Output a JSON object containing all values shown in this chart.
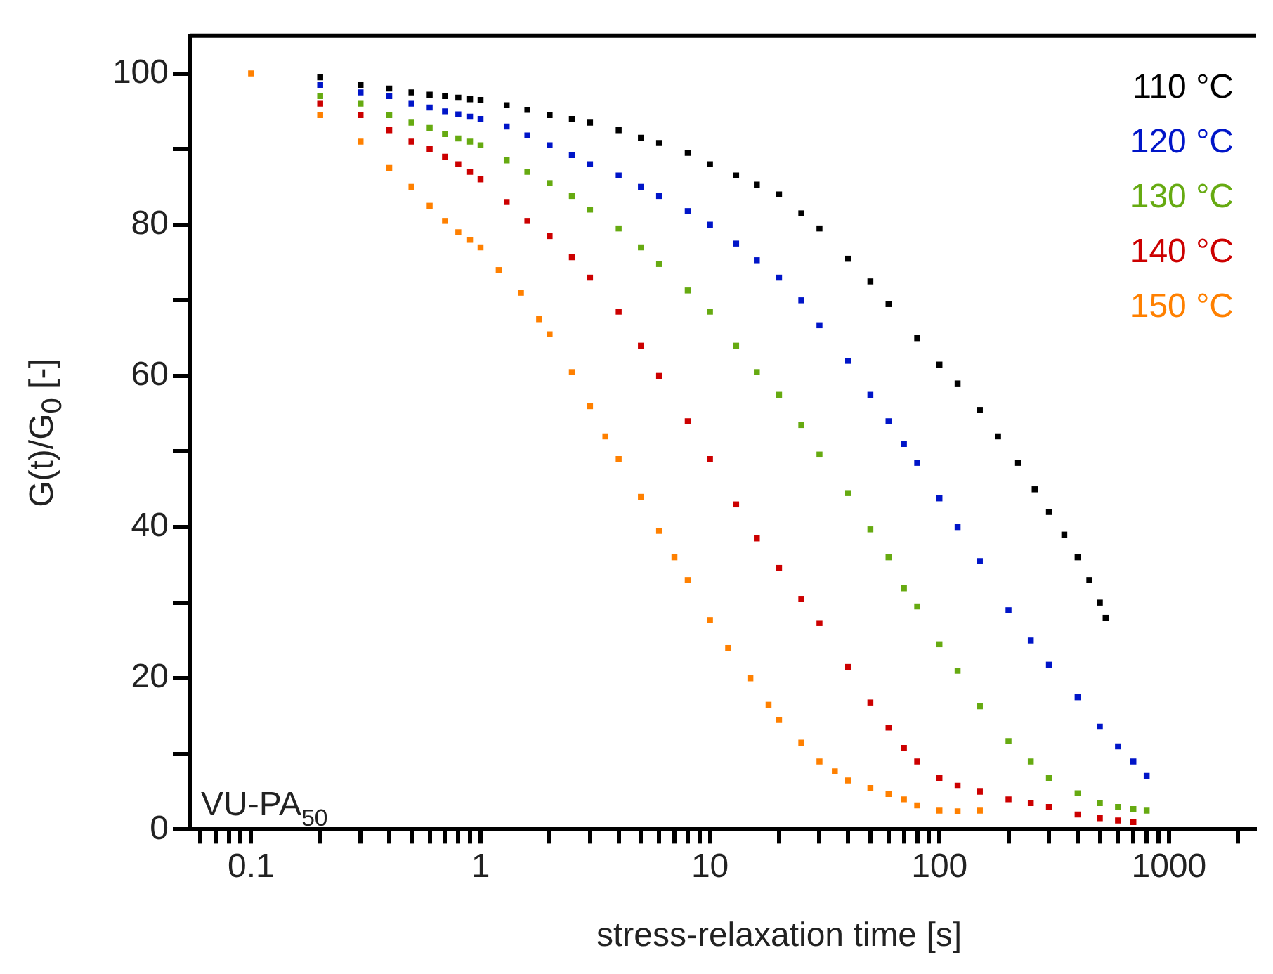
{
  "chart_data": {
    "type": "scatter",
    "xlabel": "stress-relaxation time [s]",
    "ylabel": "G(t)/G$_{0}$ [-]",
    "log": "x",
    "xlim": [
      0.054,
      2400
    ],
    "ylim": [
      0,
      105
    ],
    "xticks": [
      {
        "value": 0.06,
        "label": null
      },
      {
        "value": 0.07,
        "label": null
      },
      {
        "value": 0.08,
        "label": null
      },
      {
        "value": 0.09,
        "label": null
      },
      0.1,
      {
        "value": 0.2,
        "label": null
      },
      {
        "value": 0.3,
        "label": null
      },
      {
        "value": 0.4,
        "label": null
      },
      {
        "value": 0.5,
        "label": null
      },
      {
        "value": 0.6,
        "label": null
      },
      {
        "value": 0.7,
        "label": null
      },
      {
        "value": 0.8,
        "label": null
      },
      {
        "value": 0.9,
        "label": null
      },
      1,
      {
        "value": 2,
        "label": null
      },
      {
        "value": 3,
        "label": null
      },
      {
        "value": 4,
        "label": null
      },
      {
        "value": 5,
        "label": null
      },
      {
        "value": 6,
        "label": null
      },
      {
        "value": 7,
        "label": null
      },
      {
        "value": 8,
        "label": null
      },
      {
        "value": 9,
        "label": null
      },
      10,
      {
        "value": 20,
        "label": null
      },
      {
        "value": 30,
        "label": null
      },
      {
        "value": 40,
        "label": null
      },
      {
        "value": 50,
        "label": null
      },
      {
        "value": 60,
        "label": null
      },
      {
        "value": 70,
        "label": null
      },
      {
        "value": 80,
        "label": null
      },
      {
        "value": 90,
        "label": null
      },
      100,
      {
        "value": 200,
        "label": null
      },
      {
        "value": 300,
        "label": null
      },
      {
        "value": 400,
        "label": null
      },
      {
        "value": 500,
        "label": null
      },
      {
        "value": 600,
        "label": null
      },
      {
        "value": 700,
        "label": null
      },
      {
        "value": 800,
        "label": null
      },
      {
        "value": 900,
        "label": null
      },
      1000,
      {
        "value": 2000,
        "label": null
      }
    ],
    "yticks": [
      0,
      {
        "value": 10,
        "label": null
      },
      20,
      {
        "value": 30,
        "label": null
      },
      40,
      {
        "value": 50,
        "label": null
      },
      60,
      {
        "value": 70,
        "label": null
      },
      80,
      {
        "value": 90,
        "label": null
      },
      100
    ],
    "grid": false,
    "legend": "top right",
    "marker": "square",
    "annotations": [
      "VU-PA$_{50}$"
    ],
    "series": [
      {
        "name": "110 °C",
        "color": "#000000",
        "x": [
          0.2,
          0.3,
          0.4,
          0.5,
          0.6,
          0.7,
          0.8,
          0.9,
          1,
          1.3,
          1.6,
          2,
          2.5,
          3,
          4,
          5,
          6,
          8,
          10,
          13,
          16,
          20,
          25,
          30,
          40,
          50,
          60,
          80,
          100,
          120,
          150,
          180,
          220,
          260,
          300,
          350,
          400,
          450,
          500,
          530
        ],
        "values": [
          99.5,
          98.5,
          98,
          97.5,
          97.2,
          97,
          96.8,
          96.6,
          96.5,
          95.8,
          95.2,
          94.5,
          94,
          93.5,
          92.5,
          91.5,
          90.8,
          89.5,
          88,
          86.5,
          85.3,
          84,
          81.5,
          79.5,
          75.5,
          72.5,
          69.5,
          65,
          61.5,
          59,
          55.5,
          52,
          48.5,
          45,
          42,
          39,
          36,
          33,
          30,
          28
        ]
      },
      {
        "name": "120 °C",
        "color": "#0015c8",
        "x": [
          0.2,
          0.3,
          0.4,
          0.5,
          0.6,
          0.7,
          0.8,
          0.9,
          1,
          1.3,
          1.6,
          2,
          2.5,
          3,
          4,
          5,
          6,
          8,
          10,
          13,
          16,
          20,
          25,
          30,
          40,
          50,
          60,
          70,
          80,
          100,
          120,
          150,
          200,
          250,
          300,
          400,
          500,
          600,
          700,
          800
        ],
        "values": [
          98.5,
          97.5,
          97,
          96,
          95.5,
          95,
          94.6,
          94.3,
          94,
          93,
          91.8,
          90.5,
          89.2,
          88,
          86.5,
          85,
          83.8,
          81.8,
          80,
          77.5,
          75.3,
          73,
          70,
          66.7,
          62,
          57.5,
          54,
          51,
          48.5,
          43.8,
          40,
          35.5,
          29,
          25,
          21.8,
          17.5,
          13.6,
          11,
          9,
          7.1
        ]
      },
      {
        "name": "130 °C",
        "color": "#66aa11",
        "x": [
          0.2,
          0.3,
          0.4,
          0.5,
          0.6,
          0.7,
          0.8,
          0.9,
          1,
          1.3,
          1.6,
          2,
          2.5,
          3,
          4,
          5,
          6,
          8,
          10,
          13,
          16,
          20,
          25,
          30,
          40,
          50,
          60,
          70,
          80,
          100,
          120,
          150,
          200,
          250,
          300,
          400,
          500,
          600,
          700,
          800
        ],
        "values": [
          97,
          96,
          94.5,
          93.5,
          92.8,
          92,
          91.4,
          91,
          90.5,
          88.5,
          87,
          85.5,
          83.8,
          82,
          79.5,
          77,
          74.8,
          71.3,
          68.5,
          64,
          60.5,
          57.5,
          53.5,
          49.6,
          44.5,
          39.7,
          36,
          31.9,
          29.5,
          24.5,
          21,
          16.3,
          11.7,
          9,
          6.8,
          4.8,
          3.5,
          3,
          2.7,
          2.5
        ]
      },
      {
        "name": "140 °C",
        "color": "#cc0000",
        "x": [
          0.2,
          0.3,
          0.4,
          0.5,
          0.6,
          0.7,
          0.8,
          0.9,
          1,
          1.3,
          1.6,
          2,
          2.5,
          3,
          4,
          5,
          6,
          8,
          10,
          13,
          16,
          20,
          25,
          30,
          40,
          50,
          60,
          70,
          80,
          100,
          120,
          150,
          200,
          250,
          300,
          400,
          500,
          600,
          700
        ],
        "values": [
          96,
          94.5,
          92.5,
          91,
          90,
          89,
          88,
          87,
          86,
          83,
          80.5,
          78.5,
          75.7,
          73,
          68.5,
          64,
          60,
          54,
          49,
          43,
          38.5,
          34.6,
          30.5,
          27.3,
          21.5,
          16.8,
          13.5,
          10.8,
          9,
          6.8,
          5.8,
          5,
          4,
          3.5,
          3,
          2,
          1.5,
          1.2,
          1
        ]
      },
      {
        "name": "150 °C",
        "color": "#ff8000",
        "x": [
          0.1,
          0.2,
          0.3,
          0.4,
          0.5,
          0.6,
          0.7,
          0.8,
          0.9,
          1,
          1.2,
          1.5,
          1.8,
          2,
          2.5,
          3,
          3.5,
          4,
          5,
          6,
          7,
          8,
          10,
          12,
          15,
          18,
          20,
          25,
          30,
          35,
          40,
          50,
          60,
          70,
          80,
          100,
          120,
          150
        ],
        "values": [
          100,
          94.5,
          91,
          87.5,
          85,
          82.5,
          80.5,
          79,
          78,
          77,
          74,
          71,
          67.5,
          65.5,
          60.5,
          56,
          52,
          49,
          44,
          39.5,
          36,
          33,
          27.7,
          24,
          20,
          16.5,
          14.5,
          11.5,
          9,
          7.7,
          6.5,
          5.5,
          4.7,
          4,
          3.2,
          2.5,
          2.4,
          2.5
        ]
      }
    ]
  }
}
